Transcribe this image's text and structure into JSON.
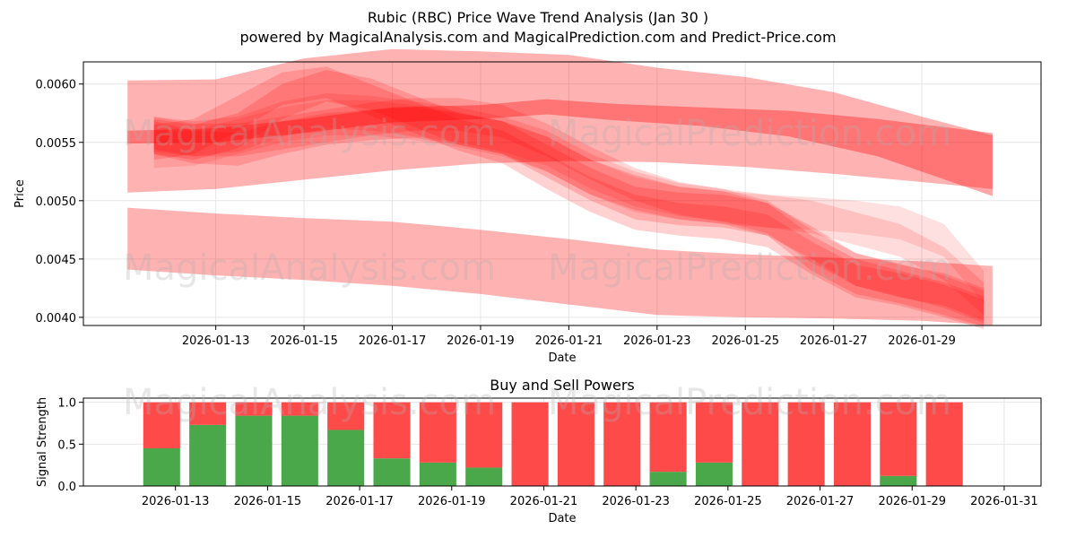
{
  "figure": {
    "title_line1": "Rubic (RBC) Price Wave Trend Analysis (Jan 30 )",
    "title_line2": "powered by MagicalAnalysis.com and MagicalPrediction.com and Predict-Price.com"
  },
  "watermarks": {
    "top_left": "MagicalAnalysis.com",
    "top_right": "MagicalPrediction.com",
    "bottom_left": "MagicalAnalysis.com",
    "bottom_right": "MagicalPrediction.com",
    "lower_left": "MagicalAnalysis.com",
    "lower_right": "MagicalPrediction.com"
  },
  "chart_data": [
    {
      "type": "area",
      "title": "",
      "xlabel": "Date",
      "ylabel": "Price",
      "ylim": [
        0.00393,
        0.00619
      ],
      "x_start_day": 11,
      "x_range_days": [
        10.0,
        31.7
      ],
      "x_ticks": [
        {
          "day": 13,
          "label": "2026-01-13"
        },
        {
          "day": 15,
          "label": "2026-01-15"
        },
        {
          "day": 17,
          "label": "2026-01-17"
        },
        {
          "day": 19,
          "label": "2026-01-19"
        },
        {
          "day": 21,
          "label": "2026-01-21"
        },
        {
          "day": 23,
          "label": "2026-01-23"
        },
        {
          "day": 25,
          "label": "2026-01-25"
        },
        {
          "day": 27,
          "label": "2026-01-27"
        },
        {
          "day": 29,
          "label": "2026-01-29"
        }
      ],
      "y_ticks": [
        {
          "value": 0.004,
          "label": "0.0040"
        },
        {
          "value": 0.0045,
          "label": "0.0045"
        },
        {
          "value": 0.005,
          "label": "0.0050"
        },
        {
          "value": 0.0055,
          "label": "0.0055"
        },
        {
          "value": 0.006,
          "label": "0.0060"
        }
      ],
      "color": "#ff0000",
      "bands": [
        {
          "name": "upper-wide-band",
          "opacity": 0.3,
          "days": [
            11,
            13,
            15,
            17,
            19,
            21,
            23,
            25,
            27,
            29,
            30.6
          ],
          "upper": [
            0.00603,
            0.00604,
            0.00622,
            0.0063,
            0.00628,
            0.00625,
            0.00614,
            0.00606,
            0.00593,
            0.00572,
            0.00556
          ],
          "lower": [
            0.00507,
            0.0051,
            0.00518,
            0.00526,
            0.00532,
            0.00534,
            0.00533,
            0.00529,
            0.00523,
            0.00516,
            0.0051
          ]
        },
        {
          "name": "lower-wide-band",
          "opacity": 0.3,
          "days": [
            11,
            13,
            15,
            17,
            19,
            21,
            23,
            25,
            27,
            29,
            30.6
          ],
          "upper": [
            0.00494,
            0.00489,
            0.00485,
            0.00482,
            0.00475,
            0.00467,
            0.00458,
            0.00454,
            0.00451,
            0.00448,
            0.00444
          ],
          "lower": [
            0.00441,
            0.00436,
            0.00432,
            0.00427,
            0.0042,
            0.00411,
            0.00402,
            0.004,
            0.00399,
            0.00397,
            0.00393
          ]
        },
        {
          "name": "upper-dense-band",
          "opacity": 0.35,
          "days": [
            11,
            13,
            15,
            17,
            19,
            20.5,
            22,
            24,
            26,
            28,
            30.6
          ],
          "upper": [
            0.0056,
            0.00562,
            0.0057,
            0.0058,
            0.00582,
            0.00587,
            0.00583,
            0.0058,
            0.00577,
            0.0057,
            0.00558
          ],
          "lower": [
            0.00549,
            0.0055,
            0.00558,
            0.00567,
            0.0057,
            0.00574,
            0.00569,
            0.00564,
            0.00555,
            0.00538,
            0.00504
          ]
        },
        {
          "name": "wave-path-1",
          "opacity": 0.18,
          "days": [
            11.6,
            12.5,
            13.5,
            14.5,
            15.5,
            16.5,
            17.5,
            18.5,
            19.5,
            20.5,
            21.5,
            22.5,
            23.5,
            24.5,
            25.5,
            26.5,
            27.5,
            28.5,
            29.5,
            30.4
          ],
          "upper": [
            0.0057,
            0.00565,
            0.00575,
            0.006,
            0.00612,
            0.00605,
            0.0059,
            0.00575,
            0.00568,
            0.00555,
            0.00535,
            0.00522,
            0.00512,
            0.00508,
            0.00498,
            0.0047,
            0.0045,
            0.0044,
            0.0043,
            0.00418
          ],
          "lower": [
            0.0054,
            0.00535,
            0.00545,
            0.0057,
            0.00585,
            0.00578,
            0.00563,
            0.00548,
            0.0054,
            0.00525,
            0.00505,
            0.00492,
            0.00484,
            0.0048,
            0.0047,
            0.0044,
            0.0042,
            0.00412,
            0.00402,
            0.00392
          ]
        },
        {
          "name": "wave-path-2",
          "opacity": 0.18,
          "days": [
            11.6,
            12.5,
            13.5,
            14.5,
            15.5,
            16.5,
            17.5,
            18.5,
            19.5,
            20.5,
            21.5,
            22.5,
            23.5,
            24.5,
            25.5,
            26.5,
            27.5,
            28.5,
            29.5,
            30.4
          ],
          "upper": [
            0.00568,
            0.0056,
            0.00558,
            0.00568,
            0.00575,
            0.00578,
            0.0058,
            0.00575,
            0.00568,
            0.00548,
            0.00528,
            0.00512,
            0.00507,
            0.00505,
            0.00498,
            0.00478,
            0.00455,
            0.00445,
            0.00438,
            0.00425
          ],
          "lower": [
            0.0054,
            0.00532,
            0.0053,
            0.0054,
            0.00548,
            0.00552,
            0.00554,
            0.00548,
            0.0054,
            0.0052,
            0.005,
            0.00484,
            0.00479,
            0.00477,
            0.0047,
            0.0045,
            0.00427,
            0.00417,
            0.0041,
            0.00397
          ]
        },
        {
          "name": "wave-path-3",
          "opacity": 0.18,
          "days": [
            11.6,
            12.5,
            13.5,
            14.5,
            15.5,
            16.5,
            17.5,
            18.5,
            19.5,
            20.5,
            21.5,
            22.5,
            23.5,
            24.5,
            25.5,
            26.5,
            27.5,
            28.5,
            29.5,
            30.4
          ],
          "upper": [
            0.00565,
            0.0057,
            0.0059,
            0.0061,
            0.00615,
            0.006,
            0.00585,
            0.0057,
            0.0056,
            0.0054,
            0.0052,
            0.00505,
            0.00498,
            0.00495,
            0.00488,
            0.00465,
            0.00445,
            0.00438,
            0.00428,
            0.00415
          ],
          "lower": [
            0.00535,
            0.0054,
            0.0056,
            0.00582,
            0.00588,
            0.00573,
            0.00558,
            0.00543,
            0.00532,
            0.0051,
            0.0049,
            0.00475,
            0.0047,
            0.00467,
            0.0046,
            0.00437,
            0.00417,
            0.0041,
            0.004,
            0.0039
          ]
        },
        {
          "name": "wave-path-4",
          "opacity": 0.14,
          "days": [
            11.6,
            12.5,
            13.5,
            14.5,
            15.5,
            16.5,
            17.5,
            18.5,
            19.5,
            20.5,
            21.5,
            22.5,
            23.5,
            24.5,
            25.5,
            26.5,
            27.5,
            28.5,
            29.5,
            30.4
          ],
          "upper": [
            0.00572,
            0.00568,
            0.00572,
            0.00585,
            0.00592,
            0.0059,
            0.00585,
            0.0058,
            0.00572,
            0.0056,
            0.0054,
            0.00525,
            0.00515,
            0.0051,
            0.00505,
            0.005,
            0.0049,
            0.0048,
            0.0046,
            0.0043
          ],
          "lower": [
            0.00542,
            0.00538,
            0.00542,
            0.00555,
            0.00562,
            0.0056,
            0.00555,
            0.0055,
            0.00542,
            0.0053,
            0.0051,
            0.00495,
            0.00487,
            0.00482,
            0.00477,
            0.00472,
            0.00462,
            0.00452,
            0.00432,
            0.00402
          ]
        },
        {
          "name": "wave-path-5",
          "opacity": 0.12,
          "days": [
            11.6,
            12.5,
            13.5,
            14.5,
            15.5,
            16.5,
            17.5,
            18.5,
            19.5,
            20.5,
            21.5,
            22.5,
            23.5,
            24.5,
            25.5,
            26.5,
            27.5,
            28.5,
            29.5,
            30.4
          ],
          "upper": [
            0.00558,
            0.0056,
            0.0057,
            0.0058,
            0.00586,
            0.00586,
            0.00582,
            0.00576,
            0.00568,
            0.00555,
            0.00535,
            0.0052,
            0.00512,
            0.00508,
            0.00505,
            0.00503,
            0.005,
            0.00495,
            0.0048,
            0.0044
          ],
          "lower": [
            0.00528,
            0.0053,
            0.0054,
            0.0055,
            0.00556,
            0.00556,
            0.00552,
            0.00546,
            0.00538,
            0.00525,
            0.00505,
            0.0049,
            0.00484,
            0.0048,
            0.00477,
            0.00475,
            0.00472,
            0.00467,
            0.00452,
            0.00412
          ]
        },
        {
          "name": "wave-path-6",
          "opacity": 0.16,
          "days": [
            11.6,
            12.5,
            13.5,
            14.5,
            15.5,
            16.5,
            17.5,
            18.5,
            19.5,
            20.5,
            21.5,
            22.5,
            23.5,
            24.5,
            25.5,
            26.5,
            27.5,
            28.5,
            29.5,
            30.4
          ],
          "upper": [
            0.00572,
            0.00566,
            0.00566,
            0.00572,
            0.00578,
            0.00584,
            0.00588,
            0.00588,
            0.00582,
            0.00566,
            0.00546,
            0.00528,
            0.00516,
            0.0051,
            0.005,
            0.00475,
            0.00455,
            0.00446,
            0.00436,
            0.00423
          ],
          "lower": [
            0.00544,
            0.00538,
            0.00538,
            0.00544,
            0.0055,
            0.00556,
            0.0056,
            0.0056,
            0.00554,
            0.00538,
            0.00518,
            0.005,
            0.00488,
            0.00482,
            0.00472,
            0.00447,
            0.00427,
            0.00418,
            0.00408,
            0.00395
          ]
        }
      ]
    },
    {
      "type": "bar",
      "title": "Buy and Sell Powers",
      "xlabel": "Date",
      "ylabel": "Signal Strength",
      "ylim": [
        0.0,
        1.05
      ],
      "x_range_days": [
        11.0,
        31.8
      ],
      "x_ticks": [
        {
          "day": 13,
          "label": "2026-01-13"
        },
        {
          "day": 15,
          "label": "2026-01-15"
        },
        {
          "day": 17,
          "label": "2026-01-17"
        },
        {
          "day": 19,
          "label": "2026-01-19"
        },
        {
          "day": 21,
          "label": "2026-01-21"
        },
        {
          "day": 23,
          "label": "2026-01-23"
        },
        {
          "day": 25,
          "label": "2026-01-25"
        },
        {
          "day": 27,
          "label": "2026-01-27"
        },
        {
          "day": 29,
          "label": "2026-01-29"
        },
        {
          "day": 31,
          "label": "2026-01-31"
        }
      ],
      "y_ticks": [
        {
          "value": 0.0,
          "label": "0.0"
        },
        {
          "value": 0.5,
          "label": "0.5"
        },
        {
          "value": 1.0,
          "label": "1.0"
        }
      ],
      "buy_color": "#4aa84a",
      "sell_color": "#ff4a4a",
      "days": [
        12.7,
        13.7,
        14.7,
        15.7,
        16.7,
        17.7,
        18.7,
        19.7,
        20.7,
        21.7,
        22.7,
        23.7,
        24.7,
        25.7,
        26.7,
        27.7,
        28.7,
        29.7
      ],
      "bar_width_days": 0.8,
      "series": [
        {
          "name": "Buy",
          "values": [
            0.45,
            0.73,
            0.84,
            0.84,
            0.67,
            0.33,
            0.28,
            0.22,
            0.0,
            0.0,
            0.0,
            0.17,
            0.28,
            0.0,
            0.0,
            0.0,
            0.12,
            0.0
          ]
        },
        {
          "name": "Sell",
          "values": [
            0.55,
            0.27,
            0.16,
            0.16,
            0.33,
            0.67,
            0.72,
            0.78,
            1.0,
            1.0,
            1.0,
            0.83,
            0.72,
            1.0,
            1.0,
            1.0,
            0.88,
            1.0
          ]
        }
      ]
    }
  ]
}
